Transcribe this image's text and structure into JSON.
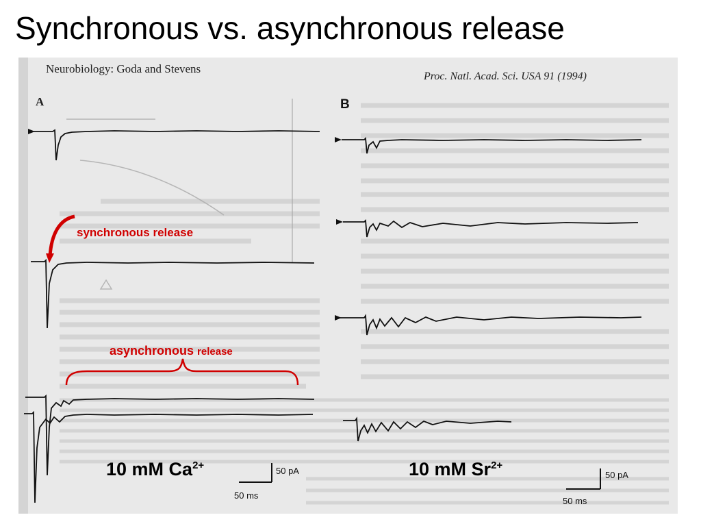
{
  "slide": {
    "title": "Synchronous vs. asynchronous release"
  },
  "paper": {
    "header_left": "Neurobiology: Goda and Stevens",
    "header_right": "Proc. Natl. Acad. Sci. USA 91 (1994)",
    "panel_a": "A",
    "panel_b": "B"
  },
  "annotations": {
    "synchronous": "synchronous release",
    "asynchronous": "asynchronous",
    "release": "release",
    "arrow_color": "#d00000",
    "brace_color": "#d00000"
  },
  "conditions": {
    "ca_base": "10 mM Ca",
    "ca_sup": "2+",
    "sr_base": "10 mM Sr",
    "sr_sup": "2+"
  },
  "scalebars": {
    "left_current": "50 pA",
    "left_time": "50 ms",
    "right_current": "50 pA",
    "right_time": "50 ms"
  }
}
